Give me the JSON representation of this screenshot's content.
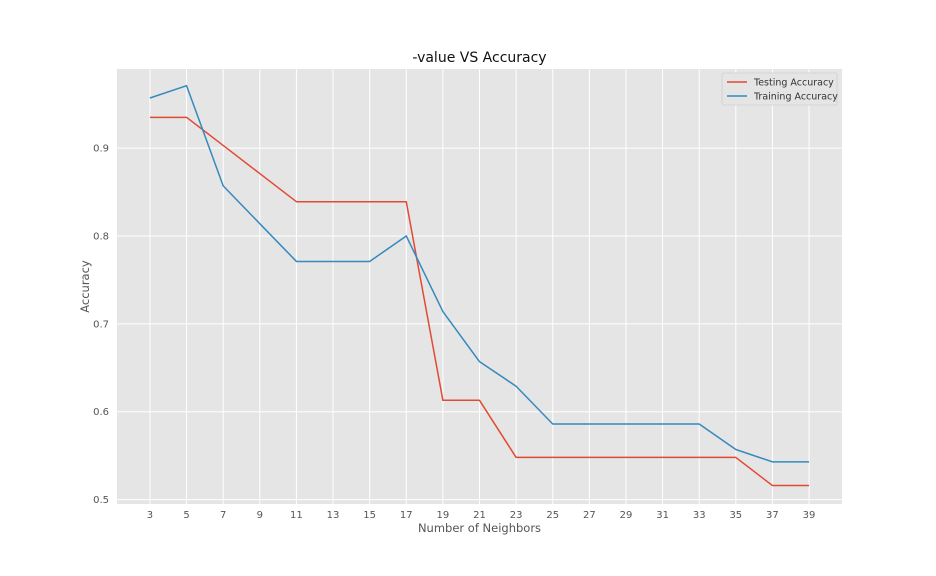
{
  "chart_data": {
    "type": "line",
    "title": "-value VS Accuracy",
    "xlabel": "Number of Neighbors",
    "ylabel": "Accuracy",
    "x": [
      3,
      5,
      7,
      9,
      11,
      13,
      15,
      17,
      19,
      21,
      23,
      25,
      27,
      29,
      31,
      33,
      35,
      37,
      39
    ],
    "xticks": [
      3,
      5,
      7,
      9,
      11,
      13,
      15,
      17,
      19,
      21,
      23,
      25,
      27,
      29,
      31,
      33,
      35,
      37,
      39
    ],
    "yticks": [
      0.5,
      0.6,
      0.7,
      0.8,
      0.9
    ],
    "xlim": [
      1.2,
      40.8
    ],
    "ylim": [
      0.495,
      0.99
    ],
    "grid": true,
    "legend_position": "top-right",
    "series": [
      {
        "name": "Testing Accuracy",
        "color": "#E24A33",
        "values": [
          0.935,
          0.935,
          0.903,
          0.871,
          0.839,
          0.839,
          0.839,
          0.839,
          0.613,
          0.613,
          0.548,
          0.548,
          0.548,
          0.548,
          0.548,
          0.548,
          0.548,
          0.516,
          0.516
        ]
      },
      {
        "name": "Training Accuracy",
        "color": "#348ABD",
        "values": [
          0.957,
          0.971,
          0.857,
          0.814,
          0.771,
          0.771,
          0.771,
          0.8,
          0.714,
          0.657,
          0.629,
          0.586,
          0.586,
          0.586,
          0.586,
          0.586,
          0.557,
          0.543,
          0.543
        ]
      }
    ]
  }
}
